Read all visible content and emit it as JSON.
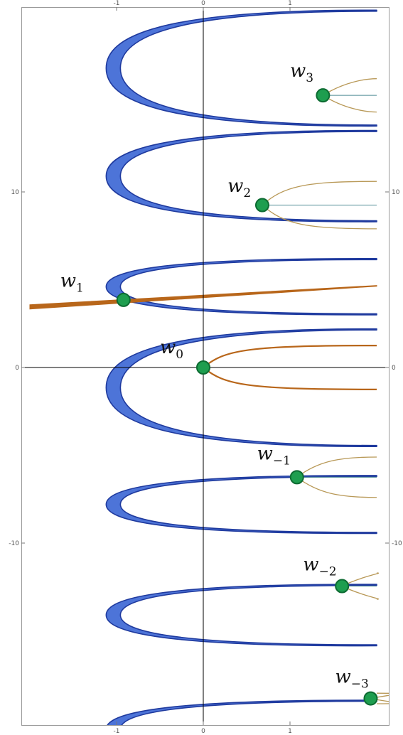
{
  "chart_data": {
    "type": "line",
    "title": "",
    "xlabel": "",
    "ylabel": "",
    "xlim": [
      -2.0,
      2.15
    ],
    "ylim": [
      -20.5,
      20.5
    ],
    "x_ticks": [
      -1,
      0,
      1
    ],
    "y_ticks": [
      10,
      0,
      -10
    ],
    "x_tick_labels": [
      "-1",
      "0",
      "1"
    ],
    "y_tick_labels": [
      "10",
      "0",
      "-10"
    ],
    "grid": false,
    "colors": {
      "blue_band": "#1f3a9e",
      "blue_fill": "#4d74d8",
      "orange_branch": "#b8661a",
      "tan_branch": "#b89856",
      "teal_line": "#4d8a94",
      "point_fill": "#1e9e4f",
      "point_edge": "#0d6b32",
      "axis": "#000000"
    },
    "blue_parabolas": [
      {
        "vertex_x": -1.12,
        "y_center": 17.05,
        "half_width": 3.3
      },
      {
        "vertex_x": -1.12,
        "y_center": 10.9,
        "half_width": 2.6
      },
      {
        "vertex_x": -1.12,
        "y_center": 4.6,
        "half_width": 1.6
      },
      {
        "vertex_x": -1.12,
        "y_center": -1.15,
        "half_width": 3.35
      },
      {
        "vertex_x": -1.12,
        "y_center": -7.8,
        "half_width": 1.65
      },
      {
        "vertex_x": -1.12,
        "y_center": -14.1,
        "half_width": 1.75
      },
      {
        "vertex_x": -1.12,
        "y_center": -20.6,
        "half_width": 1.65
      }
    ],
    "branch_points": [
      {
        "name": "w_3",
        "base": "w",
        "sub": "3",
        "x": 1.38,
        "y": 15.5,
        "label_x": 1.0,
        "label_y": 16.55,
        "branch": true,
        "branch_to_x": 2.0,
        "spread": 0.95
      },
      {
        "name": "w_2",
        "base": "w",
        "sub": "2",
        "x": 0.68,
        "y": 9.25,
        "label_x": 0.28,
        "label_y": 10.0,
        "branch": true,
        "branch_to_x": 2.0,
        "spread": 1.35
      },
      {
        "name": "w_1",
        "base": "w",
        "sub": "1",
        "x": -0.92,
        "y": 3.85,
        "label_x": -1.65,
        "label_y": 4.6,
        "branch": false
      },
      {
        "name": "w_0",
        "base": "w",
        "sub": "0",
        "x": 0.0,
        "y": 0.0,
        "label_x": -0.5,
        "label_y": 0.8,
        "branch": true,
        "branch_to_x": 2.0,
        "spread": 1.25
      },
      {
        "name": "w_-1",
        "base": "w",
        "sub": "−1",
        "x": 1.08,
        "y": -6.25,
        "label_x": 0.62,
        "label_y": -5.25,
        "branch": true,
        "branch_to_x": 2.0,
        "spread": 1.15
      },
      {
        "name": "w_-2",
        "base": "w",
        "sub": "−2",
        "x": 1.6,
        "y": -12.45,
        "label_x": 1.15,
        "label_y": -11.55,
        "branch": true,
        "branch_to_x": 2.0,
        "spread": 0.75
      },
      {
        "name": "w_-3",
        "base": "w",
        "sub": "−3",
        "x": 1.93,
        "y": -18.85,
        "label_x": 1.52,
        "label_y": -17.95,
        "branch": true,
        "branch_to_x": 2.0,
        "spread": 0.3
      }
    ],
    "orange_line": {
      "x_from": -2.0,
      "y_from": 3.45,
      "x_to": 2.0,
      "y_to": 4.65
    }
  }
}
